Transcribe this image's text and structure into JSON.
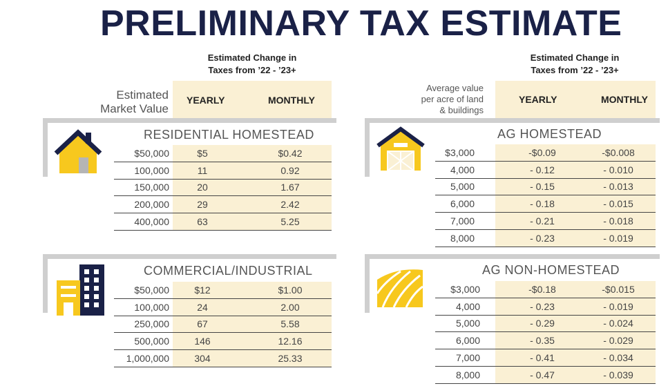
{
  "title": "PRELIMINARY TAX ESTIMATE",
  "left": {
    "change_header_line1": "Estimated Change in",
    "change_header_line2": "Taxes from ’22 - ’23+",
    "value_label_line1": "Estimated",
    "value_label_line2": "Market Value",
    "yearly": "YEARLY",
    "monthly": "MONTHLY",
    "sections": [
      {
        "title": "RESIDENTIAL HOMESTEAD",
        "icon": "house-icon",
        "rows": [
          [
            "$50,000",
            "$5",
            "$0.42"
          ],
          [
            "100,000",
            "11",
            "0.92"
          ],
          [
            "150,000",
            "20",
            "1.67"
          ],
          [
            "200,000",
            "29",
            "2.42"
          ],
          [
            "400,000",
            "63",
            "5.25"
          ]
        ]
      },
      {
        "title": "COMMERCIAL/INDUSTRIAL",
        "icon": "buildings-icon",
        "rows": [
          [
            "$50,000",
            "$12",
            "$1.00"
          ],
          [
            "100,000",
            "24",
            "2.00"
          ],
          [
            "250,000",
            "67",
            "5.58"
          ],
          [
            "500,000",
            "146",
            "12.16"
          ],
          [
            "1,000,000",
            "304",
            "25.33"
          ]
        ]
      }
    ]
  },
  "right": {
    "change_header_line1": "Estimated Change in",
    "change_header_line2": "Taxes from ’22 - ’23+",
    "value_label_line1": "Average value",
    "value_label_line2": "per acre of land",
    "value_label_line3": "& buildings",
    "yearly": "YEARLY",
    "monthly": "MONTHLY",
    "sections": [
      {
        "title": "AG HOMESTEAD",
        "icon": "barn-icon",
        "rows": [
          [
            "$3,000",
            "-$0.09",
            "-$0.008"
          ],
          [
            "4,000",
            "- 0.12",
            "- 0.010"
          ],
          [
            "5,000",
            "- 0.15",
            "- 0.013"
          ],
          [
            "6,000",
            "- 0.18",
            "- 0.015"
          ],
          [
            "7,000",
            "- 0.21",
            "- 0.018"
          ],
          [
            "8,000",
            "- 0.23",
            "- 0.019"
          ]
        ]
      },
      {
        "title": "AG NON-HOMESTEAD",
        "icon": "field-icon",
        "rows": [
          [
            "$3,000",
            "-$0.18",
            "-$0.015"
          ],
          [
            "4,000",
            "- 0.23",
            "- 0.019"
          ],
          [
            "5,000",
            "- 0.29",
            "- 0.024"
          ],
          [
            "6,000",
            "- 0.35",
            "- 0.029"
          ],
          [
            "7,000",
            "- 0.41",
            "- 0.034"
          ],
          [
            "8,000",
            "- 0.47",
            "- 0.039"
          ]
        ]
      }
    ]
  },
  "colors": {
    "navy": "#1a2147",
    "gold": "#f7c81e",
    "shade": "#faf0d4"
  }
}
